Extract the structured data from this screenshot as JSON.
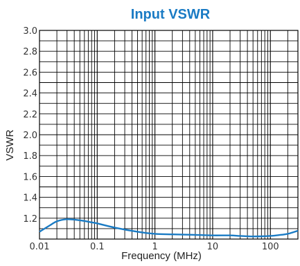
{
  "chart_data": {
    "type": "line",
    "title": "Input VSWR",
    "xlabel": "Frequency (MHz)",
    "ylabel": "VSWR",
    "x_scale": "log",
    "xlim": [
      0.01,
      300
    ],
    "ylim": [
      1.0,
      3.0
    ],
    "x_ticks": [
      {
        "value": 0.01,
        "label": "0.01"
      },
      {
        "value": 0.1,
        "label": "0.1"
      },
      {
        "value": 1,
        "label": "1"
      },
      {
        "value": 10,
        "label": "10"
      },
      {
        "value": 100,
        "label": "100"
      }
    ],
    "y_ticks": [
      {
        "value": 1.2,
        "label": "1.2"
      },
      {
        "value": 1.4,
        "label": "1.4"
      },
      {
        "value": 1.6,
        "label": "1.6"
      },
      {
        "value": 1.8,
        "label": "1.8"
      },
      {
        "value": 2.0,
        "label": "2.0"
      },
      {
        "value": 2.2,
        "label": "2.2"
      },
      {
        "value": 2.4,
        "label": "2.4"
      },
      {
        "value": 2.6,
        "label": "2.6"
      },
      {
        "value": 2.8,
        "label": "2.8"
      },
      {
        "value": 3.0,
        "label": "3.0"
      }
    ],
    "grid": true,
    "series": [
      {
        "color": "#1a7bc4",
        "x": [
          0.01,
          0.015,
          0.02,
          0.03,
          0.05,
          0.08,
          0.1,
          0.2,
          0.5,
          1,
          2,
          5,
          10,
          20,
          30,
          50,
          100,
          150,
          200,
          300
        ],
        "y": [
          1.07,
          1.13,
          1.17,
          1.19,
          1.18,
          1.16,
          1.15,
          1.11,
          1.07,
          1.05,
          1.045,
          1.04,
          1.035,
          1.035,
          1.03,
          1.025,
          1.03,
          1.04,
          1.05,
          1.08
        ]
      }
    ],
    "colors": {
      "title": "#1a7bc4",
      "grid": "#000000",
      "line": "#1a7bc4"
    }
  }
}
